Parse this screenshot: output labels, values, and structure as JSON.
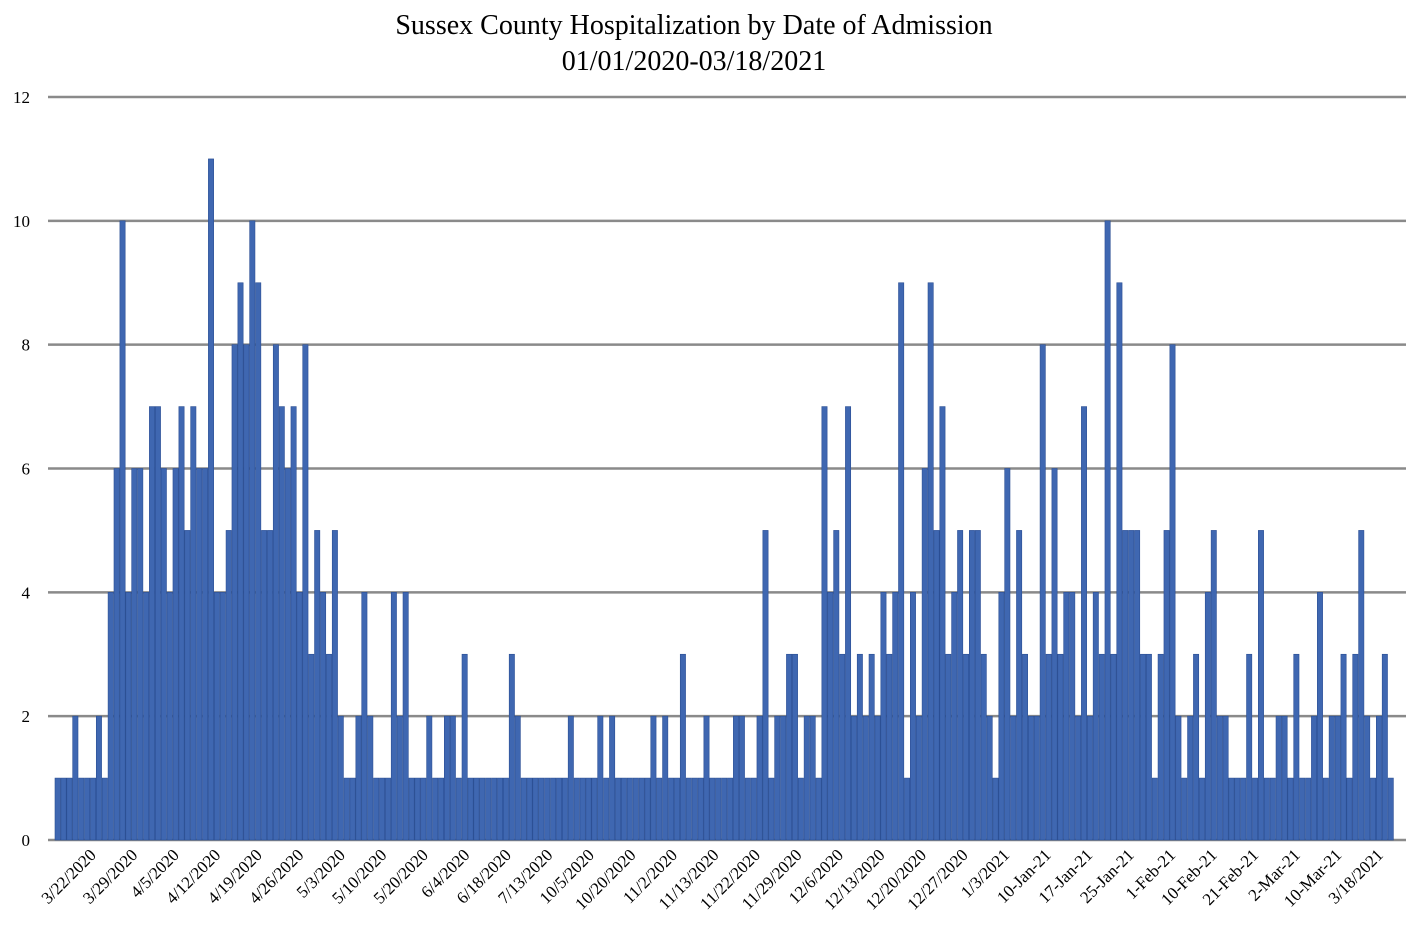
{
  "chart_data": {
    "type": "bar",
    "title": "Sussex County Hospitalization by Date of Admission",
    "subtitle": "01/01/2020-03/18/2021",
    "xlabel": "",
    "ylabel": "",
    "ylim": [
      0,
      12
    ],
    "yticks": [
      0,
      2,
      4,
      6,
      8,
      10,
      12
    ],
    "grid": true,
    "legend": "none",
    "bar_color": "#3f67b1",
    "x_tick_labels": [
      "3/22/2020",
      "3/29/2020",
      "4/5/2020",
      "4/12/2020",
      "4/19/2020",
      "4/26/2020",
      "5/3/2020",
      "5/10/2020",
      "5/20/2020",
      "6/4/2020",
      "6/18/2020",
      "7/13/2020",
      "10/5/2020",
      "10/20/2020",
      "11/2/2020",
      "11/13/2020",
      "11/22/2020",
      "11/29/2020",
      "12/6/2020",
      "12/13/2020",
      "12/20/2020",
      "12/27/2020",
      "1/3/2021",
      "10-Jan-21",
      "17-Jan-21",
      "25-Jan-21",
      "1-Feb-21",
      "10-Feb-21",
      "21-Feb-21",
      "2-Mar-21",
      "10-Mar-21",
      "3/18/2021"
    ],
    "values": [
      1,
      1,
      1,
      2,
      1,
      1,
      1,
      2,
      1,
      4,
      6,
      10,
      4,
      6,
      6,
      4,
      7,
      7,
      6,
      4,
      6,
      7,
      5,
      7,
      6,
      6,
      11,
      4,
      4,
      5,
      8,
      9,
      8,
      10,
      9,
      5,
      5,
      8,
      7,
      6,
      7,
      4,
      8,
      3,
      5,
      4,
      3,
      5,
      2,
      1,
      1,
      2,
      4,
      2,
      1,
      1,
      1,
      4,
      2,
      4,
      1,
      1,
      1,
      2,
      1,
      1,
      2,
      2,
      1,
      3,
      1,
      1,
      1,
      1,
      1,
      1,
      1,
      3,
      2,
      1,
      1,
      1,
      1,
      1,
      1,
      1,
      1,
      2,
      1,
      1,
      1,
      1,
      2,
      1,
      2,
      1,
      1,
      1,
      1,
      1,
      1,
      2,
      1,
      2,
      1,
      1,
      3,
      1,
      1,
      1,
      2,
      1,
      1,
      1,
      1,
      2,
      2,
      1,
      1,
      2,
      5,
      1,
      2,
      2,
      3,
      3,
      1,
      2,
      2,
      1,
      7,
      4,
      5,
      3,
      7,
      2,
      3,
      2,
      3,
      2,
      4,
      3,
      4,
      9,
      1,
      4,
      2,
      6,
      9,
      5,
      7,
      3,
      4,
      5,
      3,
      5,
      5,
      3,
      2,
      1,
      4,
      6,
      2,
      5,
      3,
      2,
      2,
      8,
      3,
      6,
      3,
      4,
      4,
      2,
      7,
      2,
      4,
      3,
      10,
      3,
      9,
      5,
      5,
      5,
      3,
      3,
      1,
      3,
      5,
      8,
      2,
      1,
      2,
      3,
      1,
      4,
      5,
      2,
      2,
      1,
      1,
      1,
      3,
      1,
      5,
      1,
      1,
      2,
      2,
      1,
      3,
      1,
      1,
      2,
      4,
      1,
      2,
      2,
      3,
      1,
      3,
      5,
      2,
      1,
      2,
      3,
      1
    ]
  }
}
